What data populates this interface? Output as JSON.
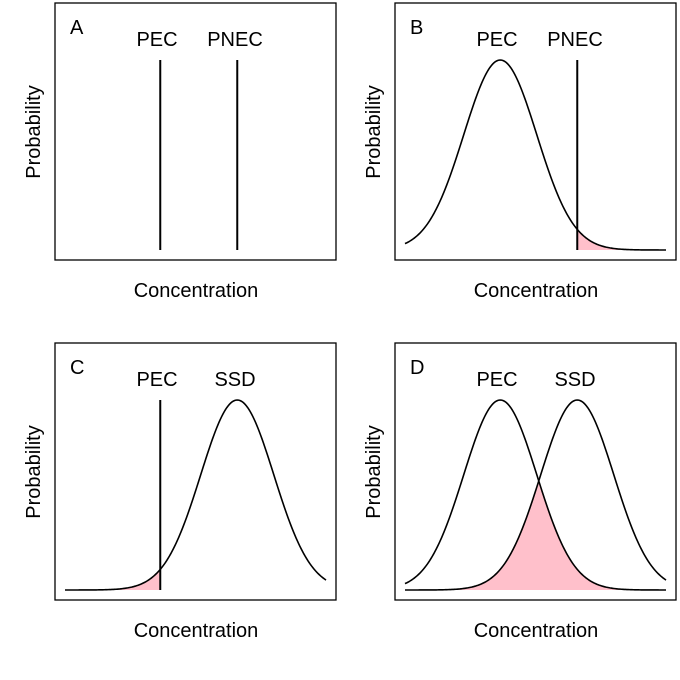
{
  "chart_data": [
    {
      "panel": "A",
      "type": "line",
      "xlabel": "Concentration",
      "ylabel": "Probability",
      "xlim": [
        0,
        1
      ],
      "ylim": [
        0,
        1
      ],
      "grid": false,
      "series_labels": [
        "PEC",
        "PNEC"
      ],
      "vlines": [
        {
          "label": "PEC",
          "x": 0.365
        },
        {
          "label": "PNEC",
          "x": 0.66
        }
      ],
      "curves": [],
      "fill": null
    },
    {
      "panel": "B",
      "type": "line",
      "xlabel": "Concentration",
      "ylabel": "Probability",
      "xlim": [
        0,
        1
      ],
      "ylim": [
        0,
        1
      ],
      "grid": false,
      "series_labels": [
        "PEC",
        "PNEC"
      ],
      "vlines": [
        {
          "label": "PNEC",
          "x": 0.66
        }
      ],
      "curves": [
        {
          "label": "PEC",
          "mean": 0.365,
          "sd": 0.14
        }
      ],
      "fill": {
        "type": "tail",
        "curve": "PEC",
        "from": 0.66,
        "to": 1,
        "color": "#ffc0cb"
      }
    },
    {
      "panel": "C",
      "type": "line",
      "xlabel": "Concentration",
      "ylabel": "Probability",
      "xlim": [
        0,
        1
      ],
      "ylim": [
        0,
        1
      ],
      "grid": false,
      "series_labels": [
        "PEC",
        "SSD"
      ],
      "vlines": [
        {
          "label": "PEC",
          "x": 0.365
        }
      ],
      "curves": [
        {
          "label": "SSD",
          "mean": 0.66,
          "sd": 0.14
        }
      ],
      "fill": {
        "type": "tail",
        "curve": "SSD",
        "from": 0,
        "to": 0.365,
        "color": "#ffc0cb"
      }
    },
    {
      "panel": "D",
      "type": "line",
      "xlabel": "Concentration",
      "ylabel": "Probability",
      "xlim": [
        0,
        1
      ],
      "ylim": [
        0,
        1
      ],
      "grid": false,
      "series_labels": [
        "PEC",
        "SSD"
      ],
      "vlines": [],
      "curves": [
        {
          "label": "PEC",
          "mean": 0.365,
          "sd": 0.14
        },
        {
          "label": "SSD",
          "mean": 0.66,
          "sd": 0.14
        }
      ],
      "fill": {
        "type": "overlap",
        "color": "#ffc0cb"
      }
    }
  ]
}
